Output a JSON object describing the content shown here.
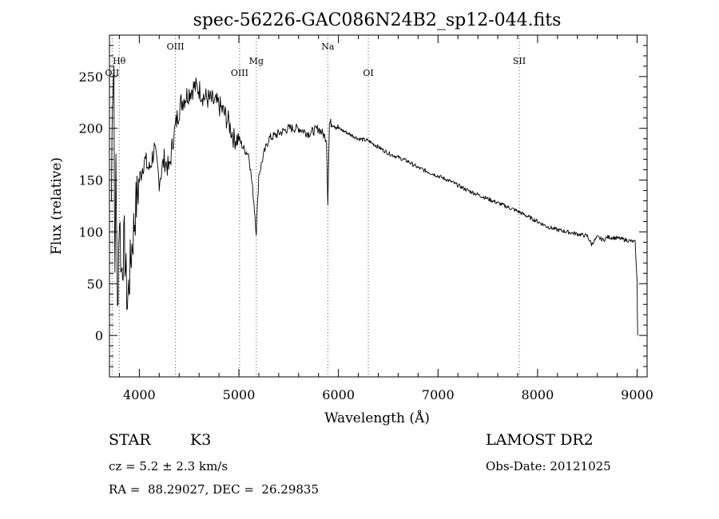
{
  "chart_data": {
    "type": "line",
    "title": "spec-56226-GAC086N24B2_sp12-044.fits",
    "xlabel": "Wavelength (Å)",
    "ylabel": "Flux (relative)",
    "xlim": [
      3700,
      9100
    ],
    "ylim": [
      -40,
      290
    ],
    "xticks": [
      "4000",
      "5000",
      "6000",
      "7000",
      "8000",
      "9000"
    ],
    "yticks": [
      "0",
      "50",
      "100",
      "150",
      "200",
      "250"
    ],
    "lines": [
      {
        "label": "OII",
        "x": 3727
      },
      {
        "label": "Hθ",
        "x": 3798
      },
      {
        "label": "OIII",
        "x": 4363
      },
      {
        "label": "OIII",
        "x": 5007
      },
      {
        "label": "Mg",
        "x": 5175
      },
      {
        "label": "Na",
        "x": 5893
      },
      {
        "label": "OI",
        "x": 6300
      },
      {
        "label": "SII",
        "x": 7816
      }
    ],
    "series": [
      {
        "x": [
          3720,
          3730,
          3745,
          3755,
          3765,
          3780,
          3800,
          3820,
          3850,
          3880,
          3920,
          3960,
          4000,
          4050,
          4100,
          4150,
          4200,
          4250,
          4300,
          4340,
          4380,
          4420,
          4460,
          4500,
          4550,
          4600,
          4650,
          4700,
          4750,
          4800,
          4850,
          4900,
          4950,
          5000,
          5050,
          5100,
          5150,
          5175,
          5200,
          5250,
          5300,
          5400,
          5500,
          5600,
          5700,
          5800,
          5880,
          5893,
          5910,
          5950,
          6000,
          6100,
          6200,
          6300,
          6400,
          6500,
          6600,
          6700,
          6800,
          6900,
          7000,
          7100,
          7200,
          7300,
          7400,
          7500,
          7600,
          7700,
          7800,
          7900,
          8000,
          8100,
          8200,
          8300,
          8400,
          8500,
          8542,
          8600,
          8662,
          8700,
          8800,
          8900,
          8980,
          9000,
          9005
        ],
        "y": [
          130,
          240,
          260,
          40,
          180,
          20,
          120,
          60,
          90,
          30,
          80,
          120,
          150,
          170,
          160,
          180,
          150,
          170,
          160,
          190,
          210,
          225,
          230,
          235,
          240,
          238,
          230,
          228,
          225,
          222,
          215,
          205,
          190,
          190,
          180,
          175,
          130,
          100,
          155,
          175,
          190,
          195,
          200,
          200,
          195,
          200,
          190,
          130,
          205,
          205,
          200,
          195,
          190,
          188,
          182,
          176,
          172,
          168,
          162,
          158,
          154,
          150,
          145,
          140,
          136,
          132,
          128,
          124,
          120,
          115,
          110,
          105,
          102,
          100,
          98,
          96,
          88,
          95,
          92,
          95,
          94,
          92,
          90,
          50,
          0
        ]
      }
    ]
  },
  "info": {
    "object_class": "STAR",
    "subclass": "K3",
    "survey": "LAMOST DR2",
    "cz": "cz = 5.2 ± 2.3 km/s",
    "obs_date": "Obs-Date: 20121025",
    "coords": "RA =  88.29027, DEC =  26.29835"
  }
}
